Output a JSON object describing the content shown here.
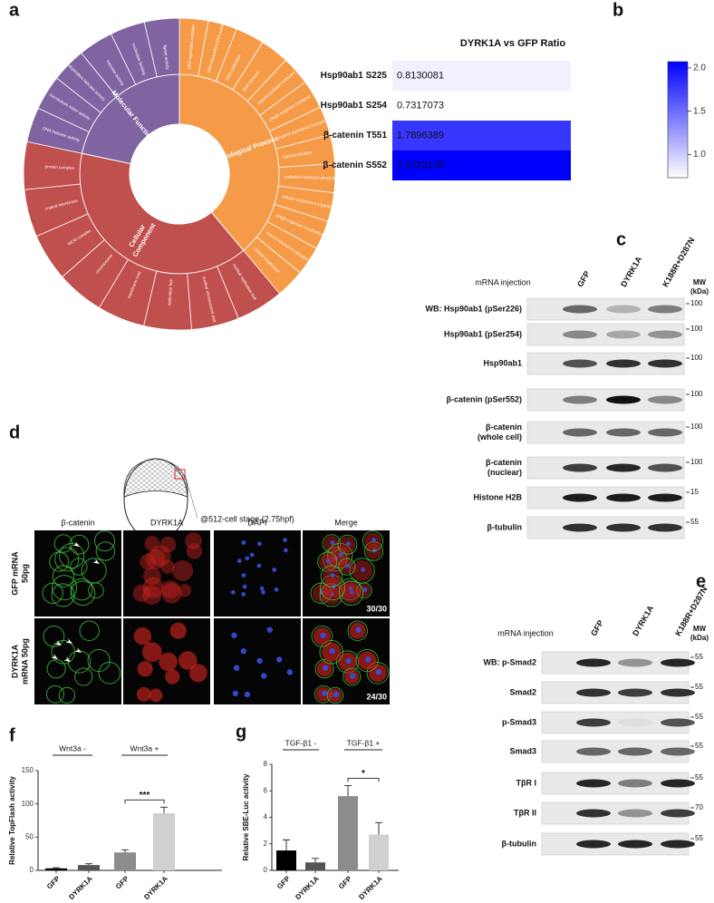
{
  "panel_labels": [
    "a",
    "b",
    "c",
    "d",
    "e",
    "f",
    "g"
  ],
  "sunburst": {
    "categories": [
      {
        "label": [
          "Biological Process"
        ],
        "color": "#f59a47",
        "terms": [
          "DNA replication initiation",
          "DNA-dependent DNA replication",
          "DNA replication",
          "lipid transport",
          "vesicle-mediated transport",
          "single-organism transport",
          "organic substance transport",
          "lipid localization",
          "oxidation-reduction process",
          "cellular component organization",
          "single-organism localization",
          "macromolecule localization",
          "cellular localization"
        ]
      },
      {
        "label": [
          "Cellular",
          "Component"
        ],
        "color": "#c0504d",
        "terms": [
          "nuclear replication fork",
          "nuclear chromosome part",
          "replication fork",
          "membrane coat",
          "chromosome",
          "MCM complex",
          "coated membrane",
          "protein complex"
        ]
      },
      {
        "label": [
          "Molecular Function"
        ],
        "color": "#8064a2",
        "terms": [
          "DNA helicase activity",
          "microtubule motor activity",
          "ATP-dependent helicase activity",
          "helicase activity",
          "nucleotide binding",
          "ligase activity"
        ]
      }
    ]
  },
  "chart_data": [
    {
      "type": "heatmap",
      "title": "DYRK1A vs GFP Ratio",
      "categories": [
        "Hsp90ab1 S225",
        "Hsp90ab1 S254",
        "β-catenin T551",
        "β-catenin S552"
      ],
      "values": [
        0.8130081,
        0.7317073,
        1.7896389,
        2.0722135
      ],
      "colorscale": [
        "#ffffff",
        "#0000ff"
      ],
      "clim": [
        0.7317073,
        2.0722135
      ],
      "cticks": [
        {
          "value": 1,
          "label": "1.0"
        },
        1.5,
        {
          "value": 2,
          "label": "2.0"
        }
      ]
    },
    {
      "type": "bar",
      "ylabel": "Relative TopFlash activity",
      "categories": [
        "GFP",
        "DYRK1A",
        "GFP",
        "DYRK1A"
      ],
      "values": [
        3,
        8,
        27,
        86
      ],
      "errors": [
        1,
        2,
        4,
        9
      ],
      "colors": [
        "#000000",
        "#555555",
        "#8c8c8c",
        "#d0d0d0"
      ],
      "ylim": [
        0,
        150
      ],
      "yticks": [
        0,
        50,
        100,
        150
      ],
      "groups": [
        "Wnt3a -",
        "Wnt3a +"
      ],
      "annotation": "***"
    },
    {
      "type": "bar",
      "ylabel": "Relative SBE-Luc activity",
      "categories": [
        "GFP",
        "DYRK1A",
        "GFP",
        "DYRK1A"
      ],
      "values": [
        1.5,
        0.6,
        5.6,
        2.7
      ],
      "errors": [
        0.8,
        0.3,
        0.8,
        0.9
      ],
      "colors": [
        "#000000",
        "#555555",
        "#8c8c8c",
        "#d0d0d0"
      ],
      "ylim": [
        0,
        8
      ],
      "yticks": [
        0,
        2,
        4,
        6,
        8
      ],
      "groups": [
        "TGF-β1 -",
        "TGF-β1 +"
      ],
      "annotation": "*"
    }
  ],
  "blot_c": {
    "header": "mRNA injection",
    "lanes": [
      "GFP",
      "DYRK1A",
      "K188R+D287N"
    ],
    "mw_header": [
      "MW",
      "(kDa)"
    ],
    "rows": [
      {
        "label": [
          "WB: Hsp90ab1 (pSer226)"
        ],
        "mw": 100
      },
      {
        "label": [
          "Hsp90ab1 (pSer254)"
        ],
        "mw": 100
      },
      {
        "label": [
          "Hsp90ab1"
        ],
        "mw": 100
      },
      {
        "label": [
          "β-catenin (pSer552)"
        ],
        "mw": 100
      },
      {
        "label": [
          "β-catenin",
          "(whole cell)"
        ],
        "mw": 100
      },
      {
        "label": [
          "β-catenin",
          "(nuclear)"
        ],
        "mw": 100
      },
      {
        "label": [
          "Histone H2B"
        ],
        "mw": 15
      },
      {
        "label": [
          "β-tubulin"
        ],
        "mw": 55
      }
    ]
  },
  "imaging": {
    "stage": "@512-cell stage (2.75hpf)",
    "columns": [
      "β-catenin",
      "DYRK1A",
      "DAPI",
      "Merge"
    ],
    "rows": [
      {
        "label": [
          "GFP mRNA",
          "50pg"
        ],
        "ratio": "30/30"
      },
      {
        "label": [
          "DYRK1A",
          "mRNA 50pg"
        ],
        "ratio": "24/30"
      }
    ]
  },
  "blot_e": {
    "header": "mRNA injection",
    "lanes": [
      "GFP",
      "DYRK1A",
      "K188R+D287N"
    ],
    "mw_header": [
      "MW",
      "(kDa)"
    ],
    "rows": [
      {
        "label": [
          "WB: p-Smad2"
        ],
        "mw": 55
      },
      {
        "label": [
          "Smad2"
        ],
        "mw": 55
      },
      {
        "label": [
          "p-Smad3"
        ],
        "mw": 55
      },
      {
        "label": [
          "Smad3"
        ],
        "mw": 55
      },
      {
        "label": [
          "TβR I"
        ],
        "mw": 55
      },
      {
        "label": [
          "TβR II"
        ],
        "mw": 70
      },
      {
        "label": [
          "β-tubulin"
        ],
        "mw": 55
      }
    ]
  }
}
